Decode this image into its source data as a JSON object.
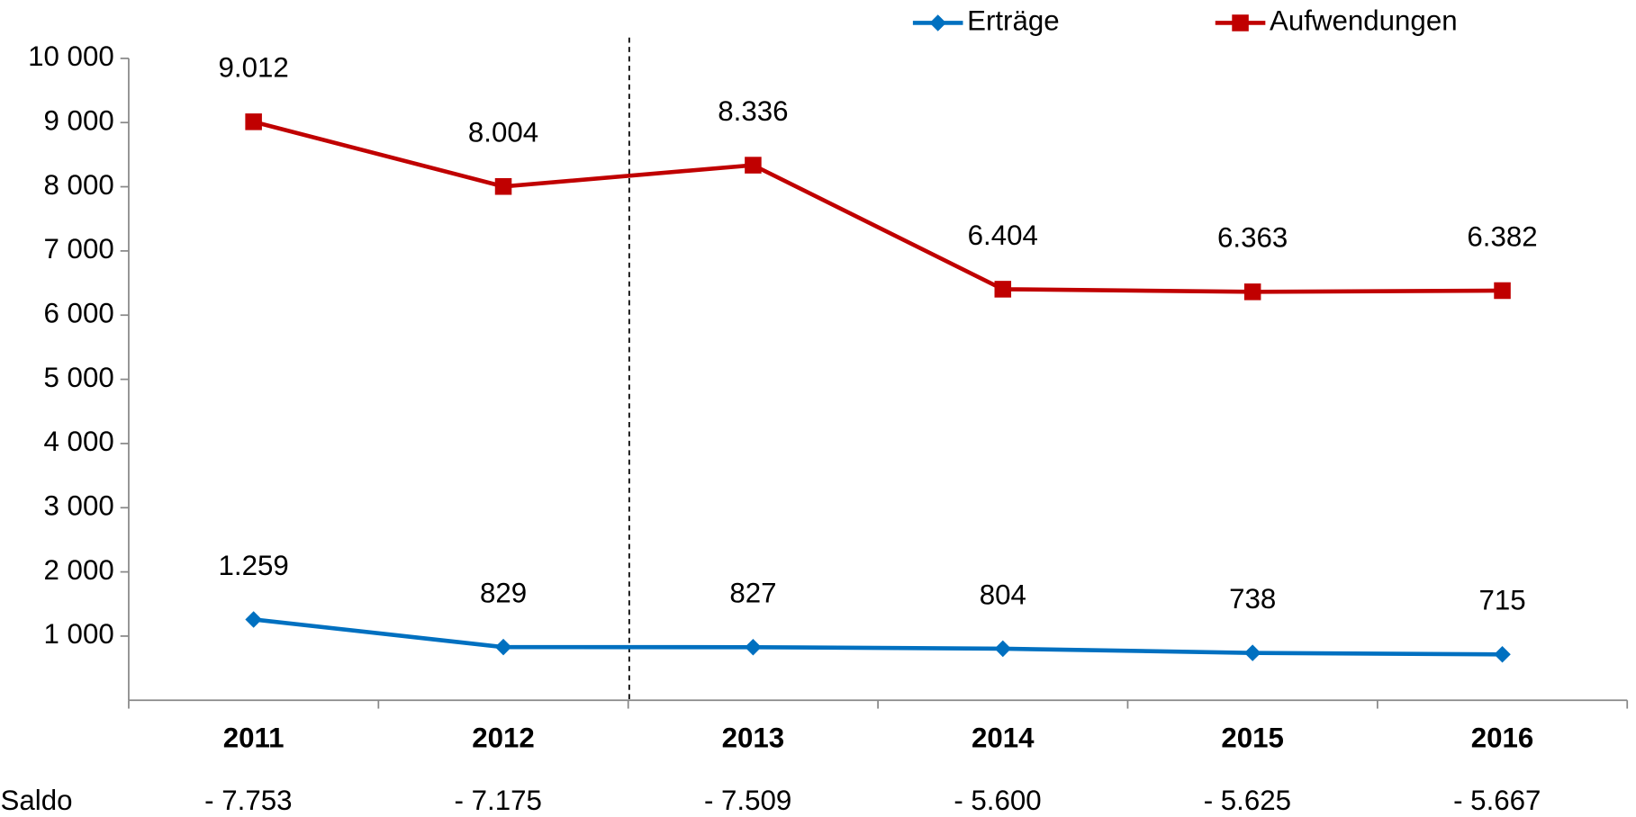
{
  "chart_data": {
    "type": "line",
    "categories": [
      "2011",
      "2012",
      "2013",
      "2014",
      "2015",
      "2016"
    ],
    "series": [
      {
        "name": "Erträge",
        "color": "#0070c0",
        "marker": "diamond",
        "values": [
          1259,
          829,
          827,
          804,
          738,
          715
        ],
        "value_labels": [
          "1.259",
          "829",
          "827",
          "804",
          "738",
          "715"
        ]
      },
      {
        "name": "Aufwendungen",
        "color": "#c00000",
        "marker": "square",
        "values": [
          9012,
          8004,
          8336,
          6404,
          6363,
          6382
        ],
        "value_labels": [
          "9.012",
          "8.004",
          "8.336",
          "6.404",
          "6.363",
          "6.382"
        ]
      }
    ],
    "ylim": [
      0,
      10000
    ],
    "yticks": [
      {
        "value": 1000,
        "label": "1 000"
      },
      {
        "value": 2000,
        "label": "2 000"
      },
      {
        "value": 3000,
        "label": "3 000"
      },
      {
        "value": 4000,
        "label": "4 000"
      },
      {
        "value": 5000,
        "label": "5 000"
      },
      {
        "value": 6000,
        "label": "6 000"
      },
      {
        "value": 7000,
        "label": "7 000"
      },
      {
        "value": 8000,
        "label": "8 000"
      },
      {
        "value": 9000,
        "label": "9 000"
      },
      {
        "value": 10000,
        "label": "10 000"
      }
    ],
    "saldo": {
      "label": "Saldo",
      "values": [
        "- 7.753",
        "- 7.175",
        "- 7.509",
        "- 5.600",
        "- 5.625",
        "- 5.667"
      ]
    },
    "legend": "top-right"
  }
}
